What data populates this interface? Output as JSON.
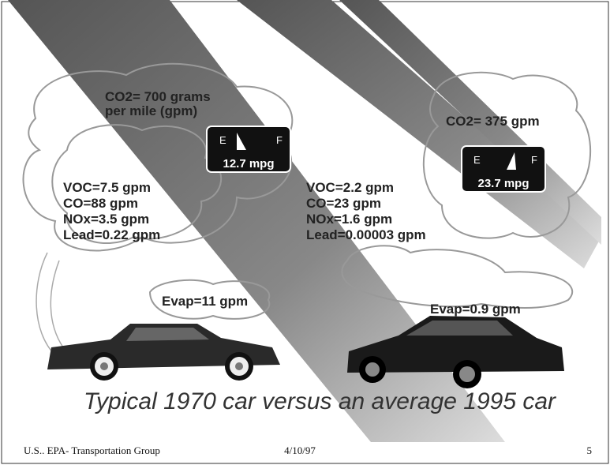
{
  "car_1970": {
    "co2": [
      "CO2= 700 grams",
      "per mile (gpm)"
    ],
    "gauge": {
      "empty": "E",
      "full": "F",
      "mpg": "12.7 mpg"
    },
    "emissions": [
      "VOC=7.5 gpm",
      "CO=88 gpm",
      "NOx=3.5 gpm",
      "Lead=0.22 gpm"
    ],
    "evap": "Evap=11 gpm"
  },
  "car_1995": {
    "co2": "CO2= 375 gpm",
    "gauge": {
      "empty": "E",
      "full": "F",
      "mpg": "23.7 mpg"
    },
    "emissions": [
      "VOC=2.2 gpm",
      "CO=23 gpm",
      "NOx=1.6 gpm",
      "Lead=0.00003 gpm"
    ],
    "evap": "Evap=0.9 gpm"
  },
  "caption": "Typical 1970 car versus an average 1995 car",
  "footer": {
    "left": "U.S.. EPA- Transportation Group",
    "center": "4/10/97",
    "right": "5"
  }
}
